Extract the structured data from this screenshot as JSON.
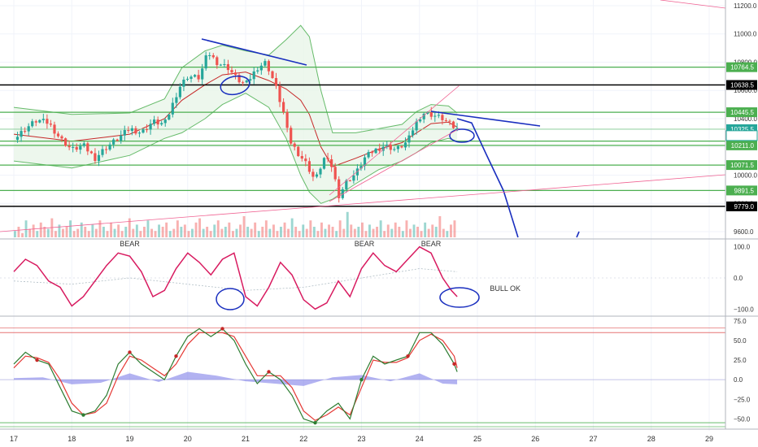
{
  "chart_data": {
    "type": "candlestick",
    "x_axis": {
      "tick_labels": [
        "17",
        "18",
        "19",
        "20",
        "21",
        "22",
        "23",
        "24",
        "25",
        "26",
        "27",
        "28",
        "29"
      ]
    },
    "price_panel": {
      "y_ticks": [
        11200.0,
        11000.0,
        10800.0,
        10600.0,
        10400.0,
        10200.0,
        10000.0,
        9800.0,
        9600.0
      ],
      "y_tick_labels": [
        "11200.0",
        "11000.0",
        "10800.0",
        "10600.0",
        "10400.0",
        "10200.0",
        "10000.0",
        "9800.0",
        "9600.0"
      ],
      "ylim": [
        9560,
        11240
      ],
      "levels": [
        {
          "label": "10764.5",
          "value": 10764.5,
          "color": "#4caf50",
          "line": "#4caf50"
        },
        {
          "label": "10638.5",
          "value": 10638.5,
          "color": "#000000",
          "line": "#000000"
        },
        {
          "label": "10445.5",
          "value": 10445.5,
          "color": "#4caf50",
          "line": "#4caf50"
        },
        {
          "label": "10325.5",
          "value": 10325.5,
          "color": "#26a69a",
          "line": "#9ad3a8"
        },
        {
          "label": "10241.0",
          "value": 10241.0,
          "color": "#4caf50",
          "line": "#4caf50"
        },
        {
          "label": "10211.0",
          "value": 10211.0,
          "color": "#4caf50",
          "line": "#4caf50"
        },
        {
          "label": "10071.5",
          "value": 10071.5,
          "color": "#4caf50",
          "line": "#4caf50"
        },
        {
          "label": "9891.5",
          "value": 9891.5,
          "color": "#4caf50",
          "line": "#4caf50"
        },
        {
          "label": "9779.0",
          "value": 9779.0,
          "color": "#000000",
          "line": "#000000"
        }
      ],
      "countdown": {
        "label": "30:05",
        "value": 10280,
        "color": "#26a69a"
      },
      "price_path": [
        [
          0,
          10250
        ],
        [
          0.2,
          10330
        ],
        [
          0.4,
          10390
        ],
        [
          0.6,
          10370
        ],
        [
          0.8,
          10260
        ],
        [
          1.0,
          10180
        ],
        [
          1.2,
          10210
        ],
        [
          1.4,
          10120
        ],
        [
          1.6,
          10200
        ],
        [
          1.8,
          10260
        ],
        [
          2.0,
          10330
        ],
        [
          2.2,
          10300
        ],
        [
          2.4,
          10380
        ],
        [
          2.6,
          10360
        ],
        [
          2.7,
          10460
        ],
        [
          2.85,
          10620
        ],
        [
          3.0,
          10700
        ],
        [
          3.2,
          10690
        ],
        [
          3.35,
          10870
        ],
        [
          3.5,
          10800
        ],
        [
          3.7,
          10760
        ],
        [
          3.85,
          10680
        ],
        [
          4.0,
          10640
        ],
        [
          4.2,
          10760
        ],
        [
          4.35,
          10800
        ],
        [
          4.5,
          10650
        ],
        [
          4.65,
          10450
        ],
        [
          4.75,
          10250
        ],
        [
          4.9,
          10160
        ],
        [
          5.05,
          10080
        ],
        [
          5.2,
          9960
        ],
        [
          5.35,
          10120
        ],
        [
          5.5,
          10060
        ],
        [
          5.6,
          9850
        ],
        [
          5.75,
          9960
        ],
        [
          5.9,
          10010
        ],
        [
          6.05,
          10120
        ],
        [
          6.2,
          10170
        ],
        [
          6.4,
          10210
        ],
        [
          6.6,
          10180
        ],
        [
          6.8,
          10240
        ],
        [
          6.9,
          10340
        ],
        [
          7.05,
          10440
        ],
        [
          7.2,
          10430
        ],
        [
          7.4,
          10400
        ],
        [
          7.55,
          10350
        ],
        [
          7.65,
          10325.5
        ]
      ],
      "upper_band": [
        [
          0,
          10480
        ],
        [
          1,
          10430
        ],
        [
          2,
          10440
        ],
        [
          2.6,
          10540
        ],
        [
          2.9,
          10760
        ],
        [
          3.3,
          10880
        ],
        [
          3.6,
          10920
        ],
        [
          4.0,
          10880
        ],
        [
          4.4,
          10850
        ],
        [
          4.7,
          10960
        ],
        [
          4.95,
          11060
        ],
        [
          5.1,
          10980
        ],
        [
          5.3,
          10600
        ],
        [
          5.5,
          10300
        ],
        [
          5.9,
          10300
        ],
        [
          6.3,
          10330
        ],
        [
          6.7,
          10360
        ],
        [
          6.95,
          10450
        ],
        [
          7.2,
          10500
        ],
        [
          7.5,
          10490
        ],
        [
          7.65,
          10440
        ]
      ],
      "lower_band": [
        [
          0,
          10100
        ],
        [
          1,
          10050
        ],
        [
          2,
          10140
        ],
        [
          2.6,
          10260
        ],
        [
          2.9,
          10300
        ],
        [
          3.3,
          10400
        ],
        [
          3.6,
          10500
        ],
        [
          4.0,
          10580
        ],
        [
          4.4,
          10480
        ],
        [
          4.7,
          10260
        ],
        [
          4.95,
          10000
        ],
        [
          5.1,
          9880
        ],
        [
          5.3,
          9800
        ],
        [
          5.5,
          9830
        ],
        [
          5.9,
          9940
        ],
        [
          6.3,
          10040
        ],
        [
          6.7,
          10100
        ],
        [
          6.95,
          10160
        ],
        [
          7.2,
          10230
        ],
        [
          7.5,
          10260
        ],
        [
          7.65,
          10240
        ]
      ],
      "middle_band": [
        [
          0,
          10290
        ],
        [
          1,
          10240
        ],
        [
          2,
          10290
        ],
        [
          2.6,
          10400
        ],
        [
          2.9,
          10530
        ],
        [
          3.3,
          10640
        ],
        [
          3.6,
          10710
        ],
        [
          4.0,
          10730
        ],
        [
          4.4,
          10670
        ],
        [
          4.7,
          10610
        ],
        [
          4.95,
          10530
        ],
        [
          5.1,
          10430
        ],
        [
          5.3,
          10200
        ],
        [
          5.5,
          10060
        ],
        [
          5.9,
          10120
        ],
        [
          6.3,
          10185
        ],
        [
          6.7,
          10230
        ],
        [
          6.95,
          10300
        ],
        [
          7.2,
          10365
        ],
        [
          7.5,
          10375
        ],
        [
          7.65,
          10340
        ]
      ],
      "volume": [
        3,
        5,
        2,
        8,
        4,
        6,
        3,
        7,
        5,
        4,
        9,
        3,
        6,
        4,
        5,
        8,
        3,
        4,
        7,
        5,
        3,
        6,
        4,
        8,
        5,
        3,
        7,
        4,
        6,
        3,
        5,
        9,
        4,
        6,
        3,
        5,
        8,
        4,
        3,
        6,
        5,
        7,
        3,
        4,
        8,
        5,
        6,
        3,
        4,
        7,
        9,
        4,
        5,
        3,
        6,
        8,
        4,
        5,
        7,
        3,
        4,
        6,
        10,
        5,
        4,
        7,
        3,
        5,
        8,
        4,
        6,
        3,
        5,
        7,
        4,
        9,
        5,
        3,
        6,
        4,
        8,
        5,
        3,
        7,
        4,
        6,
        5,
        3,
        8,
        4,
        12,
        6,
        4,
        5,
        7,
        3,
        6,
        4,
        5,
        8,
        3,
        6,
        4,
        7,
        5,
        3,
        8,
        4,
        6,
        5,
        3,
        7,
        4,
        6,
        5,
        10,
        4,
        3,
        6,
        8
      ],
      "drawings": {
        "projection_path": [
          [
            7.65,
            10400
          ],
          [
            7.9,
            10370
          ],
          [
            8.15,
            10150
          ],
          [
            8.45,
            9890
          ],
          [
            8.7,
            9560
          ]
        ]
      }
    },
    "osc1_panel": {
      "y_ticks": [
        100.0,
        0.0,
        -100.0
      ],
      "y_tick_labels": [
        "100.0",
        "0.0",
        "−100.0"
      ],
      "ylim": [
        -120,
        120
      ],
      "line": [
        [
          0,
          20
        ],
        [
          0.2,
          60
        ],
        [
          0.4,
          40
        ],
        [
          0.6,
          -10
        ],
        [
          0.8,
          -30
        ],
        [
          1.0,
          -90
        ],
        [
          1.2,
          -60
        ],
        [
          1.4,
          -10
        ],
        [
          1.6,
          40
        ],
        [
          1.8,
          80
        ],
        [
          2.0,
          70
        ],
        [
          2.2,
          20
        ],
        [
          2.4,
          -60
        ],
        [
          2.6,
          -40
        ],
        [
          2.8,
          30
        ],
        [
          3.0,
          80
        ],
        [
          3.2,
          50
        ],
        [
          3.4,
          10
        ],
        [
          3.6,
          60
        ],
        [
          3.8,
          80
        ],
        [
          4.0,
          -60
        ],
        [
          4.2,
          -90
        ],
        [
          4.4,
          -30
        ],
        [
          4.6,
          50
        ],
        [
          4.8,
          10
        ],
        [
          5.0,
          -70
        ],
        [
          5.2,
          -100
        ],
        [
          5.4,
          -80
        ],
        [
          5.6,
          -10
        ],
        [
          5.8,
          -60
        ],
        [
          6.0,
          30
        ],
        [
          6.2,
          80
        ],
        [
          6.4,
          40
        ],
        [
          6.6,
          20
        ],
        [
          6.8,
          60
        ],
        [
          7.0,
          100
        ],
        [
          7.2,
          80
        ],
        [
          7.4,
          0
        ],
        [
          7.55,
          -40
        ],
        [
          7.65,
          -60
        ]
      ],
      "signal": [
        [
          0,
          -10
        ],
        [
          1,
          -20
        ],
        [
          2,
          0
        ],
        [
          3,
          -20
        ],
        [
          3.5,
          -30
        ],
        [
          4,
          -40
        ],
        [
          5,
          -30
        ],
        [
          6,
          0
        ],
        [
          7,
          30
        ],
        [
          7.65,
          20
        ]
      ],
      "labels": [
        {
          "text": "BEAR",
          "x": 2.0
        },
        {
          "text": "BEAR",
          "x": 6.05
        },
        {
          "text": "BEAR",
          "x": 7.2
        },
        {
          "text": "BULL OK",
          "x": 8.48
        }
      ]
    },
    "osc2_panel": {
      "y_ticks": [
        75.0,
        50.0,
        25.0,
        0.0,
        -25.0,
        -50.0
      ],
      "y_tick_labels": [
        "75.0",
        "50.0",
        "25.0",
        "0.0",
        "−25.0",
        "−50.0"
      ],
      "ylim": [
        -60,
        80
      ],
      "k_line": [
        [
          0,
          20
        ],
        [
          0.2,
          35
        ],
        [
          0.4,
          25
        ],
        [
          0.6,
          20
        ],
        [
          0.8,
          -10
        ],
        [
          1.0,
          -40
        ],
        [
          1.2,
          -45
        ],
        [
          1.4,
          -40
        ],
        [
          1.6,
          -20
        ],
        [
          1.8,
          20
        ],
        [
          2.0,
          35
        ],
        [
          2.2,
          20
        ],
        [
          2.4,
          10
        ],
        [
          2.6,
          0
        ],
        [
          2.8,
          30
        ],
        [
          3.0,
          55
        ],
        [
          3.2,
          65
        ],
        [
          3.4,
          55
        ],
        [
          3.6,
          65
        ],
        [
          3.8,
          50
        ],
        [
          4.0,
          20
        ],
        [
          4.2,
          -5
        ],
        [
          4.4,
          10
        ],
        [
          4.6,
          0
        ],
        [
          4.8,
          -20
        ],
        [
          5.0,
          -50
        ],
        [
          5.2,
          -55
        ],
        [
          5.4,
          -40
        ],
        [
          5.6,
          -30
        ],
        [
          5.8,
          -50
        ],
        [
          6.0,
          0
        ],
        [
          6.2,
          30
        ],
        [
          6.4,
          20
        ],
        [
          6.6,
          25
        ],
        [
          6.8,
          30
        ],
        [
          7.0,
          60
        ],
        [
          7.2,
          60
        ],
        [
          7.4,
          45
        ],
        [
          7.6,
          20
        ],
        [
          7.65,
          10
        ]
      ],
      "d_line": [
        [
          0,
          15
        ],
        [
          0.2,
          30
        ],
        [
          0.4,
          28
        ],
        [
          0.6,
          22
        ],
        [
          0.8,
          0
        ],
        [
          1.0,
          -30
        ],
        [
          1.2,
          -45
        ],
        [
          1.4,
          -42
        ],
        [
          1.6,
          -30
        ],
        [
          1.8,
          5
        ],
        [
          2.0,
          30
        ],
        [
          2.2,
          25
        ],
        [
          2.4,
          15
        ],
        [
          2.6,
          5
        ],
        [
          2.8,
          20
        ],
        [
          3.0,
          45
        ],
        [
          3.2,
          60
        ],
        [
          3.4,
          60
        ],
        [
          3.6,
          60
        ],
        [
          3.8,
          55
        ],
        [
          4.0,
          30
        ],
        [
          4.2,
          5
        ],
        [
          4.4,
          5
        ],
        [
          4.6,
          5
        ],
        [
          4.8,
          -10
        ],
        [
          5.0,
          -40
        ],
        [
          5.2,
          -52
        ],
        [
          5.4,
          -45
        ],
        [
          5.6,
          -35
        ],
        [
          5.8,
          -45
        ],
        [
          6.0,
          -10
        ],
        [
          6.2,
          25
        ],
        [
          6.4,
          22
        ],
        [
          6.6,
          22
        ],
        [
          6.8,
          28
        ],
        [
          7.0,
          50
        ],
        [
          7.2,
          58
        ],
        [
          7.4,
          50
        ],
        [
          7.6,
          30
        ],
        [
          7.65,
          15
        ]
      ],
      "histogram": [
        [
          0,
          2
        ],
        [
          0.5,
          3
        ],
        [
          1.0,
          -6
        ],
        [
          1.5,
          -4
        ],
        [
          2.0,
          8
        ],
        [
          2.5,
          -3
        ],
        [
          3.0,
          10
        ],
        [
          3.5,
          5
        ],
        [
          4.0,
          -2
        ],
        [
          4.5,
          -5
        ],
        [
          5.0,
          -8
        ],
        [
          5.5,
          3
        ],
        [
          6.0,
          6
        ],
        [
          6.5,
          -2
        ],
        [
          7.0,
          8
        ],
        [
          7.4,
          -5
        ],
        [
          7.65,
          -6
        ]
      ],
      "upper_band": 60,
      "lower_band": -55
    },
    "colors": {
      "up": "#26a69a",
      "down": "#ef5350",
      "bb_fill": "#e8f5e9",
      "bb_line": "#66bb6a",
      "ma": "#c62828",
      "trend": "#1a2fbf",
      "pink": "#f06292",
      "osc1": "#d81b60",
      "stoch_k": "#2e7d32",
      "stoch_d": "#e53935",
      "hist": "#7e7ee8"
    }
  }
}
